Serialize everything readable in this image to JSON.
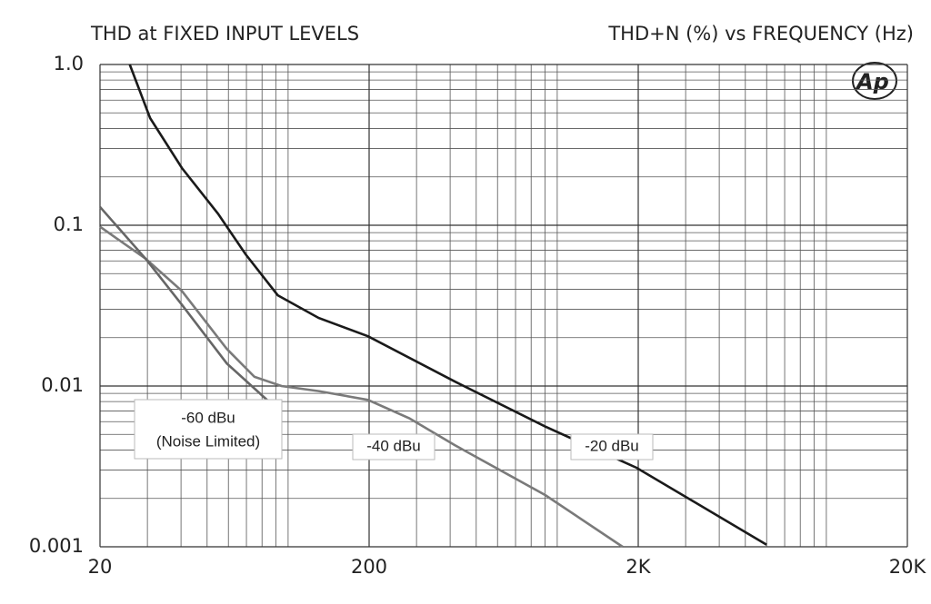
{
  "chart_data": {
    "type": "line",
    "title": "THD at FIXED INPUT LEVELS",
    "subtitle": "THD+N (%) vs FREQUENCY (Hz)",
    "logo": "Ap",
    "log_x": true,
    "log_y": true,
    "grid": true,
    "minor_grid": true,
    "xlim": [
      20,
      20000
    ],
    "xticks": [
      20,
      200,
      {
        "value": 2000,
        "label": "2K"
      },
      {
        "value": 20000,
        "label": "20K"
      }
    ],
    "ylim": [
      0.001,
      1
    ],
    "yticks": [
      0.001,
      0.01,
      0.1,
      {
        "value": 1,
        "label": "1.0"
      }
    ],
    "series": [
      {
        "name": "-20 dBu",
        "color": "#1a1a1a",
        "x": [
          25.8,
          30.7,
          40.3,
          54.9,
          69.5,
          91.5,
          130,
          198,
          415,
          902,
          1970,
          6000
        ],
        "y": [
          1.0,
          0.464,
          0.227,
          0.118,
          0.066,
          0.0367,
          0.0265,
          0.0204,
          0.0107,
          0.0056,
          0.0031,
          0.00103
        ]
      },
      {
        "name": "-40 dBu",
        "color": "#7a7a7a",
        "x": [
          20,
          29.5,
          40.3,
          59.2,
          75,
          94.5,
          130,
          198,
          282,
          415,
          902,
          1750
        ],
        "y": [
          0.098,
          0.062,
          0.039,
          0.017,
          0.0114,
          0.01,
          0.0093,
          0.0082,
          0.0063,
          0.0043,
          0.0021,
          0.001
        ]
      },
      {
        "name": "-60 dBu",
        "color": "#666666",
        "x": [
          20,
          29.5,
          40.3,
          59.2,
          85.5
        ],
        "y": [
          0.13,
          0.062,
          0.032,
          0.0138,
          0.0079
        ]
      }
    ],
    "annotations": [
      "(Noise Limited)"
    ]
  }
}
